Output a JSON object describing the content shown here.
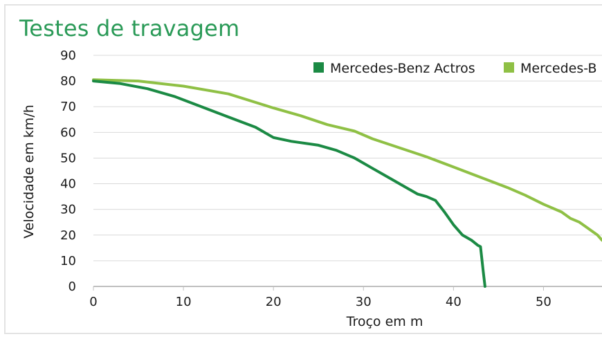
{
  "colors": {
    "title": "#2a9a57",
    "grid": "#d9d9d9",
    "axis": "#bfbfbf",
    "series_dark": "#1b8a44",
    "series_light": "#8fc045"
  },
  "chart_data": {
    "type": "line",
    "title": "Testes de travagem",
    "xlabel": "Troço em m",
    "ylabel": "Velocidade em km/h",
    "xlim": [
      0,
      56.5
    ],
    "ylim": [
      0,
      90
    ],
    "x_ticks": [
      "0",
      "10",
      "20",
      "30",
      "40",
      "50"
    ],
    "y_ticks": [
      "0",
      "10",
      "20",
      "30",
      "40",
      "50",
      "60",
      "70",
      "80",
      "90"
    ],
    "grid": "horizontal",
    "legend_position": "top-right",
    "series": [
      {
        "name": "Mercedes-Benz Actros",
        "color": "#1b8a44",
        "x": [
          0,
          3,
          6,
          9,
          12,
          15,
          18,
          20,
          22,
          25,
          27,
          29,
          31,
          33,
          35,
          36,
          37,
          38,
          39,
          40,
          41,
          42,
          42.7,
          43,
          43.3,
          43.5
        ],
        "y": [
          80,
          79,
          77,
          74,
          70,
          66,
          62,
          58,
          56.5,
          55,
          53,
          50,
          46,
          42,
          38,
          36,
          35,
          33.5,
          29,
          24,
          20,
          18,
          16,
          15.5,
          6,
          0
        ]
      },
      {
        "name": "Mercedes-B",
        "color": "#8fc045",
        "x": [
          0,
          5,
          10,
          15,
          20,
          23,
          26,
          29,
          31,
          34,
          37,
          40,
          43,
          46,
          48,
          50,
          52,
          53,
          54,
          55,
          56,
          56.5
        ],
        "y": [
          80.5,
          80,
          78,
          75,
          69.5,
          66.5,
          63,
          60.5,
          57.5,
          54,
          50.5,
          46.5,
          42.5,
          38.5,
          35.5,
          32,
          29,
          26.5,
          25,
          22.5,
          20,
          18
        ]
      }
    ]
  }
}
